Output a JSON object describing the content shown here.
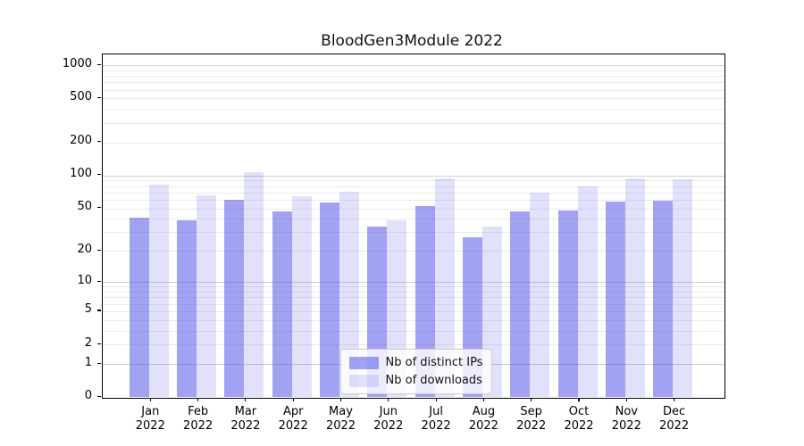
{
  "title": "BloodGen3Module 2022",
  "chart_data": {
    "type": "bar",
    "title": "BloodGen3Module 2022",
    "categories": [
      "Jan",
      "Feb",
      "Mar",
      "Apr",
      "May",
      "Jun",
      "Jul",
      "Aug",
      "Sep",
      "Oct",
      "Nov",
      "Dec"
    ],
    "year_label": "2022",
    "series": [
      {
        "name": "Nb of distinct IPs",
        "color": "rgba(86,86,232,0.55)",
        "values": [
          41,
          39,
          60,
          47,
          57,
          34,
          53,
          27,
          47,
          48,
          58,
          59
        ]
      },
      {
        "name": "Nb of downloads",
        "color": "rgba(86,86,232,0.18)",
        "values": [
          83,
          66,
          107,
          65,
          71,
          39,
          95,
          34,
          70,
          80,
          94,
          92
        ]
      }
    ],
    "xlabel": "",
    "ylabel": "",
    "yscale": "log1p",
    "y_ticks": [
      0,
      1,
      2,
      5,
      10,
      20,
      50,
      100,
      200,
      500,
      1000
    ],
    "ylim": [
      0,
      1250
    ],
    "grid": true,
    "legend_position": "lower center",
    "colors": {
      "major_gridline": "#cfcfcf",
      "minor_gridline": "#ebebeb",
      "axis": "#000000",
      "legend_border": "#cccccc"
    }
  }
}
